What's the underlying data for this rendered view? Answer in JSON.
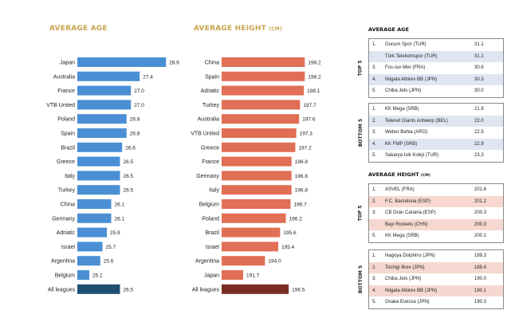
{
  "chart_data": [
    {
      "type": "bar",
      "orientation": "horizontal",
      "title": "AVERAGE AGE",
      "categories": [
        "Japan",
        "Australia",
        "France",
        "VTB United",
        "Poland",
        "Spain",
        "Brazil",
        "Greece",
        "Italy",
        "Turkey",
        "China",
        "Germany",
        "Adriatic",
        "Israel",
        "Argentina",
        "Belgium",
        "All leagues"
      ],
      "values": [
        28.6,
        27.4,
        27.0,
        27.0,
        26.8,
        26.8,
        26.6,
        26.5,
        26.5,
        26.5,
        26.1,
        26.1,
        25.9,
        25.7,
        25.6,
        25.1,
        26.5
      ],
      "labels": [
        "28.6",
        "27.4",
        "27.0",
        "27.0",
        "26.8",
        "26.8",
        "26.6",
        "26.5",
        "26.5",
        "26.5",
        "26.1",
        "26.1",
        "25.9",
        "25.7",
        "25.6",
        "25.1",
        "26.5"
      ],
      "bar_color": "#4a8fd4",
      "highlight_color": "#1f4e73"
    },
    {
      "type": "bar",
      "orientation": "horizontal",
      "title": "AVERAGE HEIGHT",
      "title_unit": "(CM)",
      "categories": [
        "China",
        "Spain",
        "Adriatic",
        "Turkey",
        "Australia",
        "VTB United",
        "Greece",
        "France",
        "Germany",
        "Italy",
        "Belgium",
        "Poland",
        "Brazil",
        "Israel",
        "Argentina",
        "Japan",
        "All leagues"
      ],
      "values": [
        198.2,
        198.2,
        198.1,
        197.7,
        197.6,
        197.3,
        197.2,
        196.8,
        196.8,
        196.8,
        196.7,
        196.2,
        195.6,
        195.4,
        194.0,
        191.7,
        196.5
      ],
      "labels": [
        "198.2",
        "198.2",
        "198.1",
        "197.7",
        "197.6",
        "197.3",
        "197.2",
        "196.8",
        "196.8",
        "196.8",
        "196.7",
        "196.2",
        "195.6",
        "195.4",
        "194.0",
        "191.7",
        "196.5"
      ],
      "bar_color": "#e06f55",
      "highlight_color": "#7a2d22"
    },
    {
      "type": "table",
      "title": "AVERAGE AGE",
      "groups": [
        {
          "label": "TOP 5",
          "rows": [
            {
              "rank": "1.",
              "team": "Gucum Spor (TUR)",
              "value": "31.1"
            },
            {
              "rank": ".",
              "team": "Türk Telekomspor (TUR)",
              "value": "31.1"
            },
            {
              "rank": "3.",
              "team": "Fos-sur-Mer (FRA)",
              "value": "30.6"
            },
            {
              "rank": "4.",
              "team": "Niigata Albirex BB (JPN)",
              "value": "30.3"
            },
            {
              "rank": "5.",
              "team": "Chiba Jets (JPN)",
              "value": "30.0"
            }
          ]
        },
        {
          "label": "BOTTOM 5",
          "rows": [
            {
              "rank": "1.",
              "team": "KK Mega (SRB)",
              "value": "21.9"
            },
            {
              "rank": "2.",
              "team": "Telenet Giants Antwerp (BEL)",
              "value": "22.0"
            },
            {
              "rank": "3.",
              "team": "Weber Bahia (ARG)",
              "value": "22.5"
            },
            {
              "rank": "4.",
              "team": "KK FMP (SRB)",
              "value": "22.9"
            },
            {
              "rank": "5.",
              "team": "Sakarya Isik Koleji (TUR)",
              "value": "23.3"
            }
          ]
        }
      ]
    },
    {
      "type": "table",
      "title": "AVERAGE HEIGHT",
      "title_unit": "(CM)",
      "groups": [
        {
          "label": "TOP 5",
          "rows": [
            {
              "rank": "1.",
              "team": "ASVEL (FRA)",
              "value": "201.6"
            },
            {
              "rank": "2.",
              "team": "F.C. Barcelona (ESP)",
              "value": "201.2"
            },
            {
              "rank": "3.",
              "team": "CB Gran Canaria (ESP)",
              "value": "200.3"
            },
            {
              "rank": ".",
              "team": "Bayi Rockets (CHN)",
              "value": "200.3"
            },
            {
              "rank": "5.",
              "team": "KK Mega (SRB)",
              "value": "200.1"
            }
          ]
        },
        {
          "label": "BOTTOM 5",
          "rows": [
            {
              "rank": "1.",
              "team": "Nagoya Dolphins (JPN)",
              "value": "189.3"
            },
            {
              "rank": "2.",
              "team": "Tochigi Brex (JPN)",
              "value": "189.4"
            },
            {
              "rank": "3.",
              "team": "Chiba Jets (JPN)",
              "value": "190.0"
            },
            {
              "rank": "4.",
              "team": "Niigata Albirex BB (JPN)",
              "value": "190.1"
            },
            {
              "rank": "5.",
              "team": "Osaka Evessa (JPN)",
              "value": "190.3"
            }
          ]
        }
      ]
    }
  ]
}
